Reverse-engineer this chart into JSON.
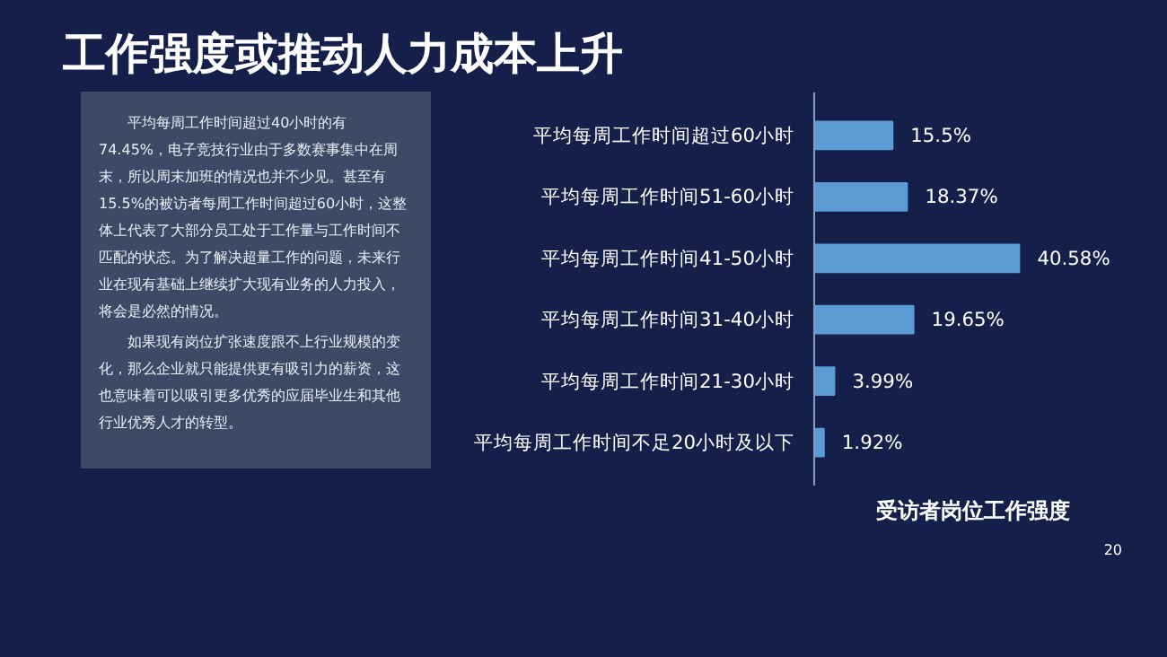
{
  "chart_data": {
    "type": "bar",
    "orientation": "horizontal",
    "title": "受访者岗位工作强度",
    "subtitle": "工作强度或推动人力成本上升",
    "categories": [
      "平均每周工作时间超过60小时",
      "平均每周工作时间51-60小时",
      "平均每周工作时间41-50小时",
      "平均每周工作时间31-40小时",
      "平均每周工作时间21-30小时",
      "平均每周工作时间不足20小时及以下"
    ],
    "values": [
      15.5,
      18.37,
      40.58,
      19.65,
      3.99,
      1.92
    ],
    "value_labels": [
      "15.5%",
      "18.37%",
      "40.58%",
      "19.65%",
      "3.99%",
      "1.92%"
    ],
    "color": "#5b9bd5",
    "grid": false,
    "annotations": [
      "平均每周工作时间超过40小时的有74.45%，电子竞技行业由于多数赛事集中在周末，所以周末加班的情况也并不少见。甚至有15.5%的被访者每周工作时间超过60小时，这整体上代表了大部分员工处于工作量与工作时间不匹配的状态。为了解决超量工作的问题，未来行业在现有基础上继续扩大现有业务的人力投入，将会是必然的情况。",
      "如果现有岗位扩张速度跟不上行业规模的变化，那么企业就只能提供更有吸引力的薪资，这也意味着可以吸引更多优秀的应届毕业生和其他行业优秀人才的转型。",
      "20"
    ]
  }
}
